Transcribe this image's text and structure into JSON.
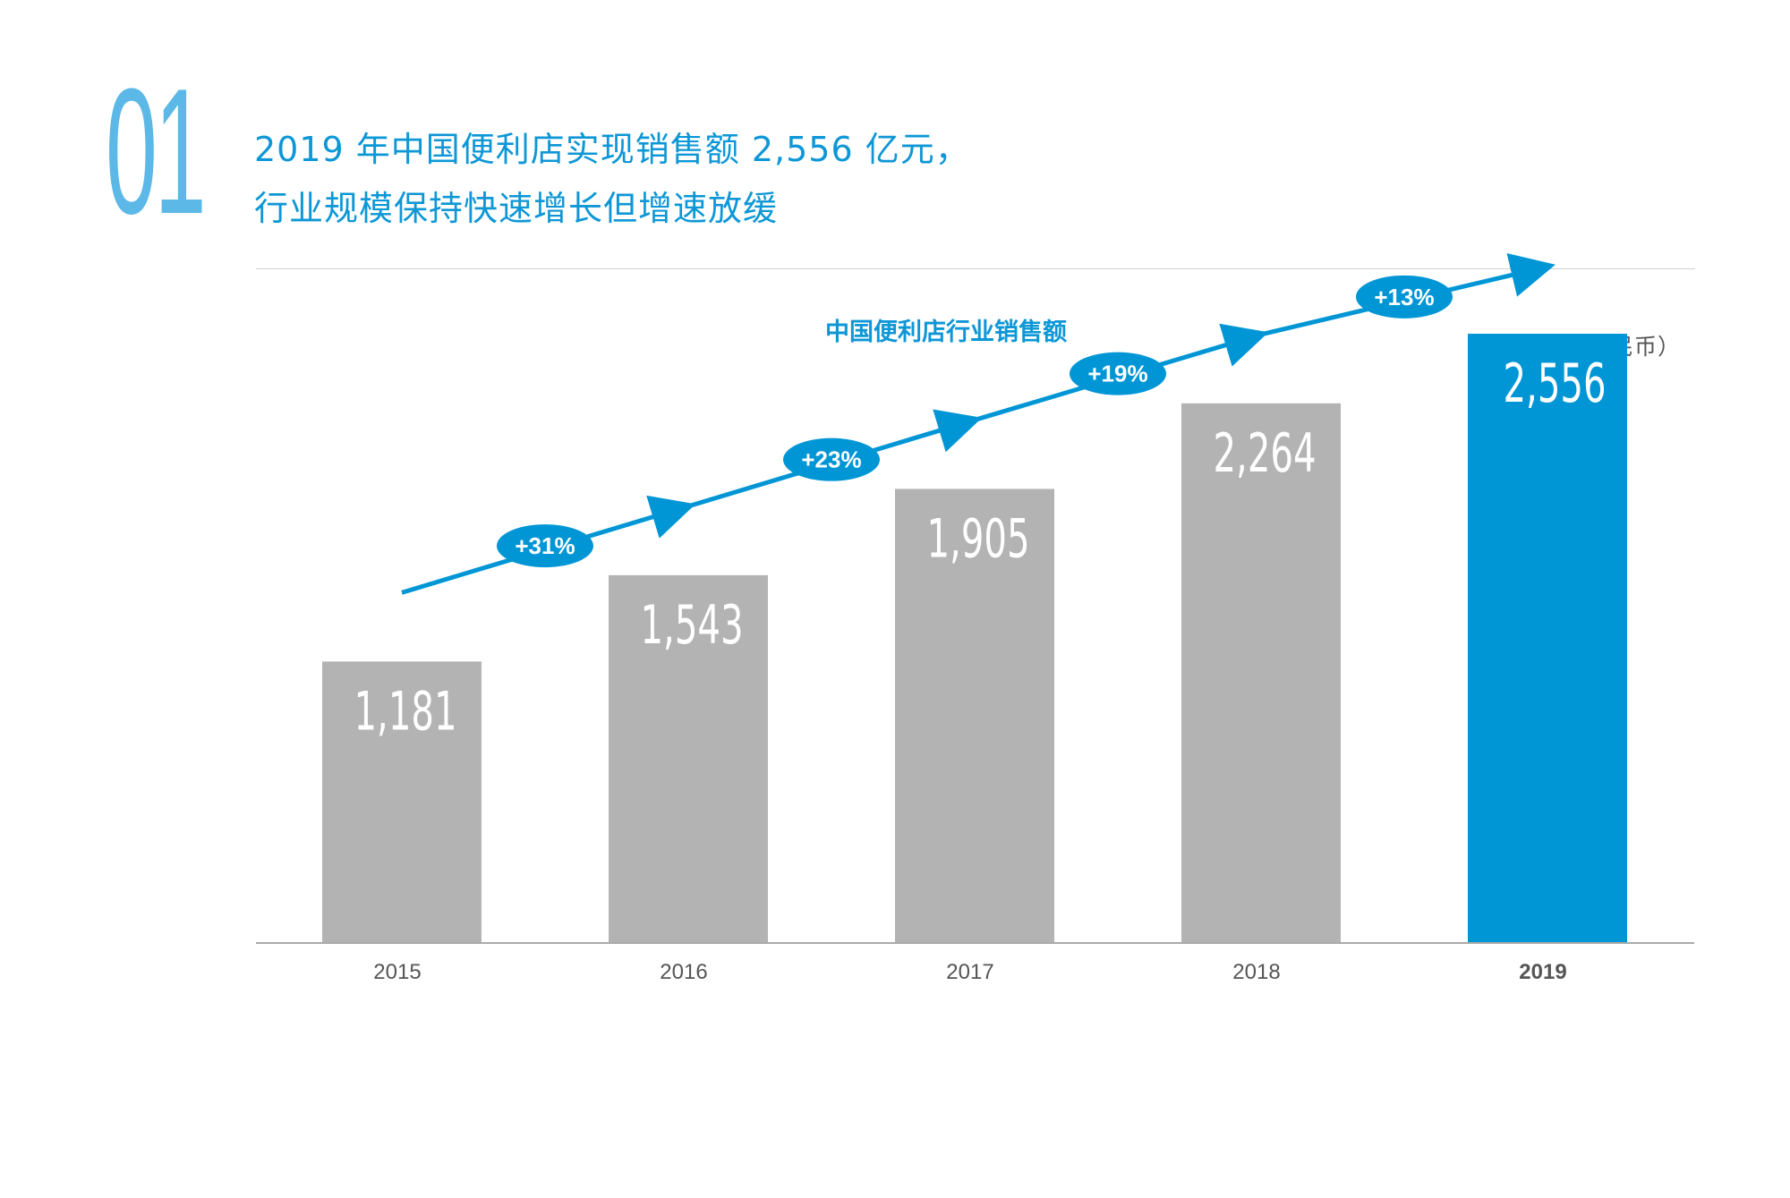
{
  "section_number": "01",
  "headline": {
    "line1": "2019 年中国便利店实现销售额 2,556 亿元，",
    "line2": "行业规模保持快速增长但增速放缓"
  },
  "colors": {
    "accent": "#0096d6",
    "bar_default": "#b3b3b3",
    "bar_highlight": "#0096d6",
    "divider": "#cfcfcf"
  },
  "chart_data": {
    "type": "bar",
    "title": "中国便利店行业销售额",
    "unit": "（亿元人民币）",
    "categories": [
      "2015",
      "2016",
      "2017",
      "2018",
      "2019"
    ],
    "values": [
      1181,
      1543,
      1905,
      2264,
      2556
    ],
    "value_labels": [
      "1,181",
      "1,543",
      "1,905",
      "2,264",
      "2,556"
    ],
    "highlight_index": 4,
    "growth_rates": [
      "+31%",
      "+23%",
      "+19%",
      "+13%"
    ],
    "ylim": [
      0,
      2800
    ],
    "grid": false,
    "legend": "none"
  }
}
